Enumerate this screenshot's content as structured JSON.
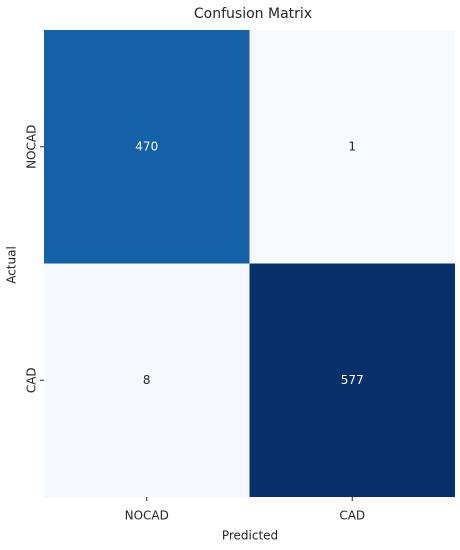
{
  "chart_data": {
    "type": "heatmap",
    "title": "Confusion Matrix",
    "xlabel": "Predicted",
    "ylabel": "Actual",
    "x_categories": [
      "NOCAD",
      "CAD"
    ],
    "y_categories": [
      "NOCAD",
      "CAD"
    ],
    "values": [
      [
        470,
        1
      ],
      [
        8,
        577
      ]
    ],
    "colormap": [
      "#f7fbff",
      "#deebf7",
      "#c6dbef",
      "#9ecae1",
      "#6baed6",
      "#4292c6",
      "#2171b5",
      "#08519c",
      "#08306b"
    ]
  }
}
